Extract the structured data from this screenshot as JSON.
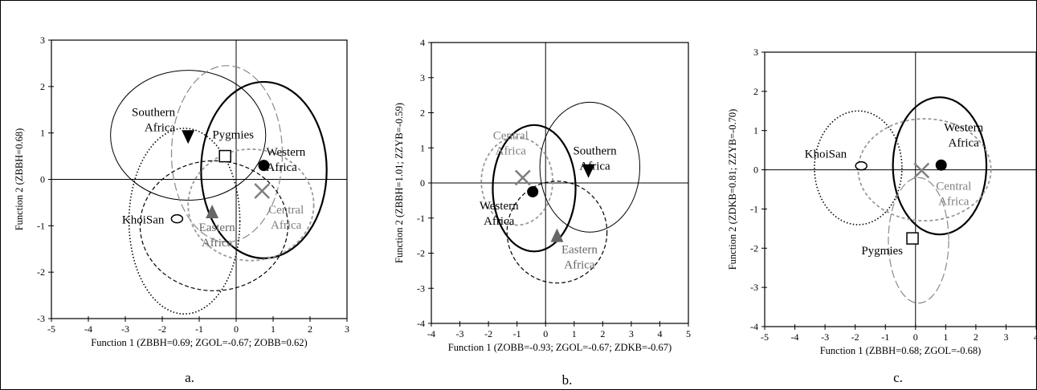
{
  "chart_data": [
    {
      "type": "scatter",
      "panel_label": "a.",
      "xlabel": "Function  1 (ZBBH=0.69; ZGOL=-0.67; ZOBB=0.62)",
      "ylabel": "Function  2 (ZBBH=0.68)",
      "xlim": [
        -5,
        3
      ],
      "ylim": [
        -3,
        3
      ],
      "xticks": [
        "-5",
        "-4",
        "-3",
        "-2",
        "-1",
        "0",
        "1",
        "2",
        "3"
      ],
      "yticks": [
        "3",
        "2",
        "1",
        "0",
        "-1",
        "-2",
        "-3"
      ],
      "grid": false,
      "points": [
        {
          "label": "Southern Africa",
          "lines": [
            "Southern",
            "Africa"
          ],
          "marker": "triangle-down",
          "x": -1.3,
          "y": 0.92,
          "color": "#000000"
        },
        {
          "label": "Pygmies",
          "lines": [
            "Pygmies"
          ],
          "marker": "square",
          "x": -0.3,
          "y": 0.5,
          "color": "#000000"
        },
        {
          "label": "Western Africa",
          "lines": [
            "Western",
            "Africa"
          ],
          "marker": "circle",
          "x": 0.75,
          "y": 0.3,
          "color": "#000000"
        },
        {
          "label": "Central Africa",
          "lines": [
            "Central",
            "Africa"
          ],
          "marker": "x",
          "x": 0.7,
          "y": -0.25,
          "color": "#7f7f7f"
        },
        {
          "label": "Eastern Africa",
          "lines": [
            "Eastern",
            "Africa"
          ],
          "marker": "triangle-up",
          "x": -0.65,
          "y": -0.7,
          "color": "#666666"
        },
        {
          "label": "KhoiSan",
          "lines": [
            "KhoiSan"
          ],
          "marker": "open-ellipse",
          "x": -1.6,
          "y": -0.85,
          "color": "#000000"
        }
      ],
      "ellipses": [
        {
          "group": "Southern Africa",
          "cx": -1.3,
          "cy": 0.95,
          "rx": 2.1,
          "ry": 1.4,
          "style": "thin-solid"
        },
        {
          "group": "Pygmies",
          "cx": -0.25,
          "cy": 0.55,
          "rx": 1.5,
          "ry": 1.9,
          "style": "long-dash"
        },
        {
          "group": "Western Africa",
          "cx": 0.75,
          "cy": 0.2,
          "rx": 1.7,
          "ry": 1.9,
          "style": "thick-solid"
        },
        {
          "group": "Central Africa",
          "cx": 0.4,
          "cy": -0.55,
          "rx": 1.7,
          "ry": 1.2,
          "style": "grey-dash"
        },
        {
          "group": "Eastern Africa",
          "cx": -0.6,
          "cy": -1.0,
          "rx": 2.0,
          "ry": 1.4,
          "style": "dash"
        },
        {
          "group": "KhoiSan",
          "cx": -1.4,
          "cy": -0.9,
          "rx": 1.5,
          "ry": 2.0,
          "style": "dotted"
        }
      ]
    },
    {
      "type": "scatter",
      "panel_label": "b.",
      "xlabel": "Function  1 (ZOBB=-0.93; ZGOL=-0.67; ZDKB=-0.67)",
      "ylabel": "Function  2 (ZBBH=1.01; ZZYB=-0.59)",
      "xlim": [
        -4,
        5
      ],
      "ylim": [
        -4,
        4
      ],
      "xticks": [
        "-4",
        "-3",
        "-2",
        "-1",
        "0",
        "1",
        "2",
        "3",
        "4",
        "5"
      ],
      "yticks": [
        "4",
        "3",
        "2",
        "1",
        "0",
        "-1",
        "-2",
        "-3",
        "-4"
      ],
      "grid": false,
      "points": [
        {
          "label": "Central Africa",
          "lines": [
            "Central",
            "Africa"
          ],
          "marker": "x",
          "x": -0.8,
          "y": 0.15,
          "color": "#7f7f7f"
        },
        {
          "label": "Western Africa",
          "lines": [
            "Western",
            "Africa"
          ],
          "marker": "circle",
          "x": -0.45,
          "y": -0.25,
          "color": "#000000"
        },
        {
          "label": "Southern Africa",
          "lines": [
            "Southern",
            "Africa"
          ],
          "marker": "triangle-down",
          "x": 1.5,
          "y": 0.35,
          "color": "#000000"
        },
        {
          "label": "Eastern Africa",
          "lines": [
            "Eastern",
            "Africa"
          ],
          "marker": "triangle-up",
          "x": 0.4,
          "y": -1.5,
          "color": "#666666"
        }
      ],
      "ellipses": [
        {
          "group": "Central Africa",
          "cx": -1.0,
          "cy": 0.05,
          "rx": 1.25,
          "ry": 1.25,
          "style": "grey-dash"
        },
        {
          "group": "Western Africa",
          "cx": -0.4,
          "cy": -0.15,
          "rx": 1.45,
          "ry": 1.8,
          "style": "thick-solid"
        },
        {
          "group": "Southern Africa",
          "cx": 1.55,
          "cy": 0.45,
          "rx": 1.75,
          "ry": 1.85,
          "style": "thin-solid"
        },
        {
          "group": "Eastern Africa",
          "cx": 0.4,
          "cy": -1.4,
          "rx": 1.75,
          "ry": 1.45,
          "style": "dash"
        }
      ]
    },
    {
      "type": "scatter",
      "panel_label": "c.",
      "xlabel": "Function  1 (ZBBH=0.68; ZGOL=-0.68)",
      "ylabel": "Function  2 (ZDKB=0.81; ZZYB=-0.70)",
      "xlim": [
        -5,
        4
      ],
      "ylim": [
        -4,
        3
      ],
      "xticks": [
        "-5",
        "-4",
        "-3",
        "-2",
        "-1",
        "0",
        "1",
        "2",
        "3",
        "4"
      ],
      "yticks": [
        "3",
        "2",
        "1",
        "0",
        "-1",
        "-2",
        "-3",
        "-4"
      ],
      "grid": false,
      "points": [
        {
          "label": "KhoiSan",
          "lines": [
            "KhoiSan"
          ],
          "marker": "open-ellipse",
          "x": -1.8,
          "y": 0.1,
          "color": "#000000"
        },
        {
          "label": "Western Africa",
          "lines": [
            "Western",
            "Africa"
          ],
          "marker": "circle",
          "x": 0.85,
          "y": 0.12,
          "color": "#000000"
        },
        {
          "label": "Central Africa",
          "lines": [
            "Central",
            "Africa"
          ],
          "marker": "x",
          "x": 0.2,
          "y": -0.02,
          "color": "#7f7f7f"
        },
        {
          "label": "Pygmies",
          "lines": [
            "Pygmies"
          ],
          "marker": "square",
          "x": -0.1,
          "y": -1.75,
          "color": "#000000"
        }
      ],
      "ellipses": [
        {
          "group": "KhoiSan",
          "cx": -1.9,
          "cy": 0.05,
          "rx": 1.45,
          "ry": 1.45,
          "style": "dotted"
        },
        {
          "group": "Western Africa",
          "cx": 0.8,
          "cy": 0.1,
          "rx": 1.55,
          "ry": 1.75,
          "style": "thick-solid"
        },
        {
          "group": "Central Africa",
          "cx": 0.3,
          "cy": 0.0,
          "rx": 2.2,
          "ry": 1.3,
          "style": "grey-dash"
        },
        {
          "group": "Pygmies",
          "cx": 0.1,
          "cy": -1.8,
          "rx": 1.0,
          "ry": 1.6,
          "style": "long-dash"
        }
      ]
    }
  ]
}
